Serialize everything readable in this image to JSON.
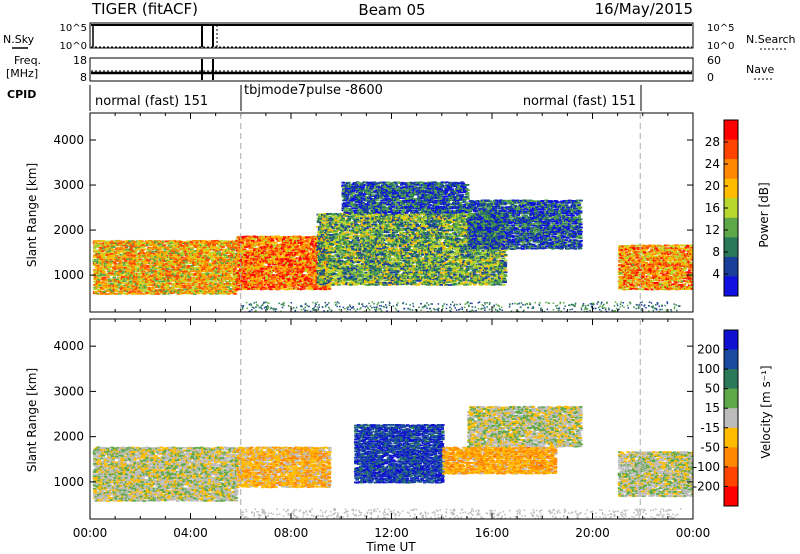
{
  "header": {
    "radar": "TIGER (fitACF)",
    "beam": "Beam 05",
    "date": "16/May/2015"
  },
  "top_panels": {
    "nsky_label": "N.Sky",
    "nsearch_label": "N.Search",
    "freq_label_1": "Freq.",
    "freq_label_2": "[MHz]",
    "nave_label": "Nave",
    "cpid_label": "CPID",
    "left_ticks_top": [
      "10^5",
      "10^0"
    ],
    "right_ticks_top": [
      "10^5",
      "10^0"
    ],
    "left_ticks_freq": [
      "18",
      "8"
    ],
    "right_ticks_nave": [
      "60",
      "0"
    ]
  },
  "cpid": {
    "modes": [
      {
        "label": "normal (fast) 151",
        "start_ut": 0.0,
        "end_ut": 6.0
      },
      {
        "label": "tbjmode7pulse -8600",
        "start_ut": 6.0,
        "end_ut": 21.9
      },
      {
        "label": "normal (fast) 151",
        "start_ut": 21.9,
        "end_ut": 24.0
      }
    ]
  },
  "axes": {
    "ylabel": "Slant Range [km]",
    "xlabel": "Time UT",
    "xticks": [
      "00:00",
      "04:00",
      "08:00",
      "12:00",
      "16:00",
      "20:00",
      "00:00"
    ],
    "yticks": [
      "1000",
      "2000",
      "3000",
      "4000"
    ]
  },
  "colorbars": {
    "power": {
      "label": "Power [dB]",
      "ticks": [
        "28",
        "24",
        "20",
        "16",
        "12",
        "8",
        "4"
      ],
      "colors": [
        "#ff0000",
        "#ff4400",
        "#ff8800",
        "#ffbb00",
        "#b8d830",
        "#5ea84a",
        "#2a7a5a",
        "#1a3f9a",
        "#1010e0"
      ]
    },
    "velocity": {
      "label": "Velocity [m s⁻¹]",
      "ticks": [
        "200",
        "100",
        "50",
        "15",
        "-15",
        "-50",
        "-100",
        "-200"
      ],
      "colors": [
        "#1010d0",
        "#1a4aa0",
        "#2a7a5a",
        "#5ea84a",
        "#bcbcbc",
        "#ffbb00",
        "#ff8800",
        "#ff4400",
        "#ff0000"
      ]
    }
  },
  "chart_data": [
    {
      "type": "heatmap",
      "name": "Power",
      "title": "Beam 05",
      "xlabel": "Time UT",
      "ylabel": "Slant Range [km]",
      "xlim": [
        0,
        24
      ],
      "ylim": [
        180,
        4600
      ],
      "colorbar_label": "Power [dB]",
      "colorbar_range": [
        0,
        32
      ],
      "regions": [
        {
          "t0": 0.1,
          "t1": 5.8,
          "r0": 600,
          "r1": 1800,
          "value": 20
        },
        {
          "t0": 5.8,
          "t1": 9.5,
          "r0": 700,
          "r1": 1900,
          "value": 24
        },
        {
          "t0": 9.0,
          "t1": 16.5,
          "r0": 800,
          "r1": 2400,
          "value": 12
        },
        {
          "t0": 10.0,
          "t1": 15.0,
          "r0": 2400,
          "r1": 3100,
          "value": 6
        },
        {
          "t0": 15.0,
          "t1": 19.5,
          "r0": 1600,
          "r1": 2700,
          "value": 6
        },
        {
          "t0": 21.0,
          "t1": 24.0,
          "r0": 700,
          "r1": 1700,
          "value": 22
        }
      ]
    },
    {
      "type": "heatmap",
      "name": "Velocity",
      "title": "Beam 05",
      "xlabel": "Time UT",
      "ylabel": "Slant Range [km]",
      "xlim": [
        0,
        24
      ],
      "ylim": [
        180,
        4600
      ],
      "colorbar_label": "Velocity [m s⁻¹]",
      "colorbar_range": [
        -250,
        250
      ],
      "regions": [
        {
          "t0": 0.1,
          "t1": 5.8,
          "r0": 600,
          "r1": 1800,
          "value": 0
        },
        {
          "t0": 5.8,
          "t1": 9.5,
          "r0": 900,
          "r1": 1800,
          "value": -60
        },
        {
          "t0": 10.5,
          "t1": 14.0,
          "r0": 1000,
          "r1": 2300,
          "value": 180
        },
        {
          "t0": 14.0,
          "t1": 18.5,
          "r0": 1200,
          "r1": 1800,
          "value": -80
        },
        {
          "t0": 15.0,
          "t1": 19.5,
          "r0": 1800,
          "r1": 2700,
          "value": 0
        },
        {
          "t0": 21.0,
          "t1": 24.0,
          "r0": 700,
          "r1": 1700,
          "value": 0
        }
      ]
    }
  ]
}
